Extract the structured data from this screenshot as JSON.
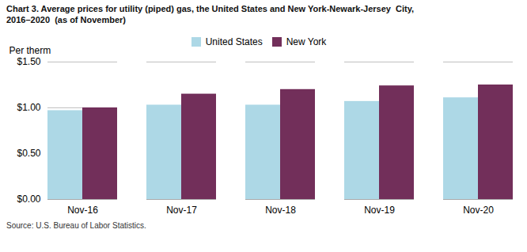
{
  "chart_data": {
    "type": "bar",
    "title": "Chart 3. Average prices for utility (piped) gas, the United States and New York-Newark-Jersey  City,",
    "subtitle": "2016–2020  (as of November)",
    "y_label": "Per therm",
    "source": "Source: U.S. Bureau of Labor Statistics.",
    "categories": [
      "Nov-16",
      "Nov-17",
      "Nov-18",
      "Nov-19",
      "Nov-20"
    ],
    "series": [
      {
        "name": "United States",
        "color": "#ADD8E6",
        "values": [
          0.97,
          1.03,
          1.03,
          1.07,
          1.11
        ]
      },
      {
        "name": "New York",
        "color": "#722F5A",
        "values": [
          1.0,
          1.15,
          1.2,
          1.24,
          1.25
        ]
      }
    ],
    "ylim": [
      0.0,
      1.5
    ],
    "yticks": [
      {
        "value": 0.0,
        "label": "$0.00"
      },
      {
        "value": 0.5,
        "label": "$0.50"
      },
      {
        "value": 1.0,
        "label": "$1.00"
      },
      {
        "value": 1.5,
        "label": "$1.50"
      }
    ],
    "grid": true,
    "legend": "top"
  }
}
